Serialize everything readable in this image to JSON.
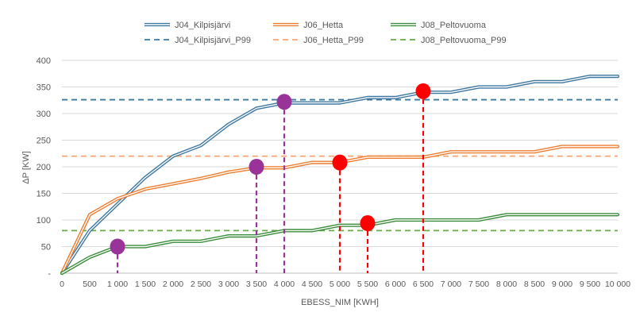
{
  "chart_data": {
    "type": "line",
    "xlabel": "EBESS_NIM [KWH]",
    "ylabel": "ΔP [KW]",
    "xlim": [
      0,
      10000
    ],
    "ylim": [
      0,
      400
    ],
    "x_ticks": [
      0,
      500,
      1000,
      1500,
      2000,
      2500,
      3000,
      3500,
      4000,
      4500,
      5000,
      5500,
      6000,
      6500,
      7000,
      7500,
      8000,
      8500,
      9000,
      9500,
      10000
    ],
    "x_tick_labels": [
      "0",
      "500",
      "1 000",
      "1 500",
      "2 000",
      "2 500",
      "3 000",
      "3 500",
      "4 000",
      "4 500",
      "5 000",
      "5 500",
      "6 000",
      "6 500",
      "7 000",
      "7 500",
      "8 000",
      "8 500",
      "9 000",
      "9 500",
      "10 000"
    ],
    "y_ticks": [
      0,
      50,
      100,
      150,
      200,
      250,
      300,
      350,
      400
    ],
    "y_tick_labels": [
      "-",
      "50",
      "100",
      "150",
      "200",
      "250",
      "300",
      "350",
      "400"
    ],
    "grid": "horizontal",
    "legend_position": "top",
    "x": [
      0,
      500,
      1000,
      1500,
      2000,
      2500,
      3000,
      3500,
      4000,
      4500,
      5000,
      5500,
      6000,
      6500,
      7000,
      7500,
      8000,
      8500,
      9000,
      9500,
      10000
    ],
    "series": [
      {
        "name": "J04_Kilpisjärvi",
        "color": "#3e77a0",
        "style": "solid",
        "values": [
          0,
          80,
          130,
          180,
          220,
          240,
          280,
          310,
          320,
          320,
          320,
          330,
          330,
          340,
          340,
          350,
          350,
          360,
          360,
          370,
          370
        ]
      },
      {
        "name": "J06_Hetta",
        "color": "#ed7d31",
        "style": "solid",
        "values": [
          0,
          110,
          140,
          158,
          168,
          178,
          190,
          198,
          198,
          208,
          208,
          218,
          218,
          218,
          228,
          228,
          228,
          228,
          238,
          238,
          238
        ]
      },
      {
        "name": "J08_Peltovuoma",
        "color": "#3a8c3a",
        "style": "solid",
        "values": [
          0,
          30,
          50,
          50,
          60,
          60,
          70,
          70,
          80,
          80,
          90,
          90,
          100,
          100,
          100,
          100,
          110,
          110,
          110,
          110,
          110
        ]
      },
      {
        "name": "J04_Kilpisjärvi_P99",
        "color": "#3e77a0",
        "style": "dashed",
        "constant": 326
      },
      {
        "name": "J06_Hetta_P99",
        "color": "#f4a678",
        "style": "dashed",
        "constant": 220
      },
      {
        "name": "J08_Peltovuoma_P99",
        "color": "#6aa84f",
        "style": "dashed",
        "constant": 80
      }
    ],
    "markers": [
      {
        "x": 1000,
        "y": 50,
        "color": "#993399"
      },
      {
        "x": 3500,
        "y": 200,
        "color": "#993399"
      },
      {
        "x": 4000,
        "y": 322,
        "color": "#993399"
      },
      {
        "x": 5000,
        "y": 208,
        "color": "#ff0000"
      },
      {
        "x": 5500,
        "y": 94,
        "color": "#ff0000"
      },
      {
        "x": 6500,
        "y": 342,
        "color": "#ff0000"
      }
    ]
  }
}
